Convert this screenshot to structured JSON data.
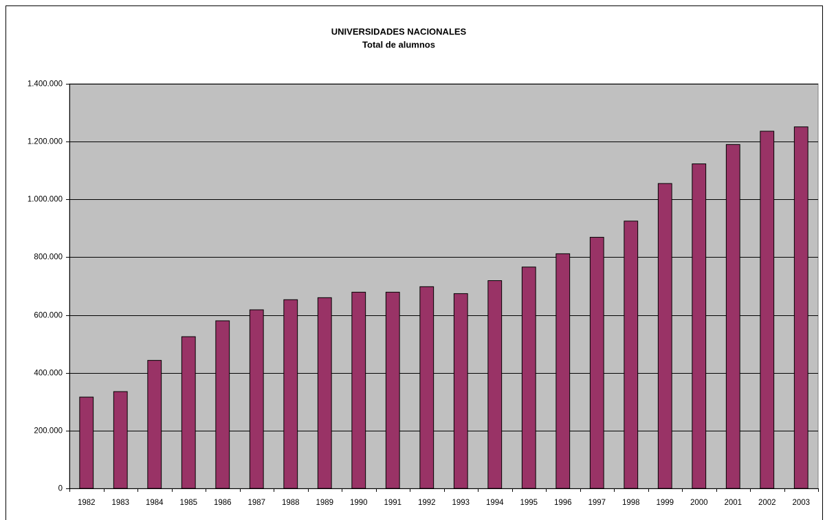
{
  "chart_data": {
    "type": "bar",
    "title": "UNIVERSIDADES NACIONALES",
    "subtitle": "Total de alumnos",
    "categories": [
      "1982",
      "1983",
      "1984",
      "1985",
      "1986",
      "1987",
      "1988",
      "1989",
      "1990",
      "1991",
      "1992",
      "1993",
      "1994",
      "1995",
      "1996",
      "1997",
      "1998",
      "1999",
      "2000",
      "2001",
      "2002",
      "2003"
    ],
    "values": [
      316000,
      335000,
      443000,
      525000,
      580000,
      618000,
      653000,
      660000,
      679000,
      679000,
      698000,
      674000,
      719000,
      766000,
      812000,
      869000,
      925000,
      1055000,
      1123000,
      1190000,
      1236000,
      1251000
    ],
    "color": "#993366",
    "plot_background": "#c0c0c0",
    "ylim": [
      0,
      1400000
    ],
    "yticks": [
      0,
      {
        "value": 200000,
        "label": "200.000"
      },
      {
        "value": 400000,
        "label": "400.000"
      },
      {
        "value": 600000,
        "label": "600.000"
      },
      {
        "value": 800000,
        "label": "800.000"
      },
      {
        "value": 1000000,
        "label": "1.000.000"
      },
      {
        "value": 1200000,
        "label": "1.200.000"
      },
      {
        "value": 1400000,
        "label": "1.400.000"
      }
    ],
    "grid": true
  }
}
